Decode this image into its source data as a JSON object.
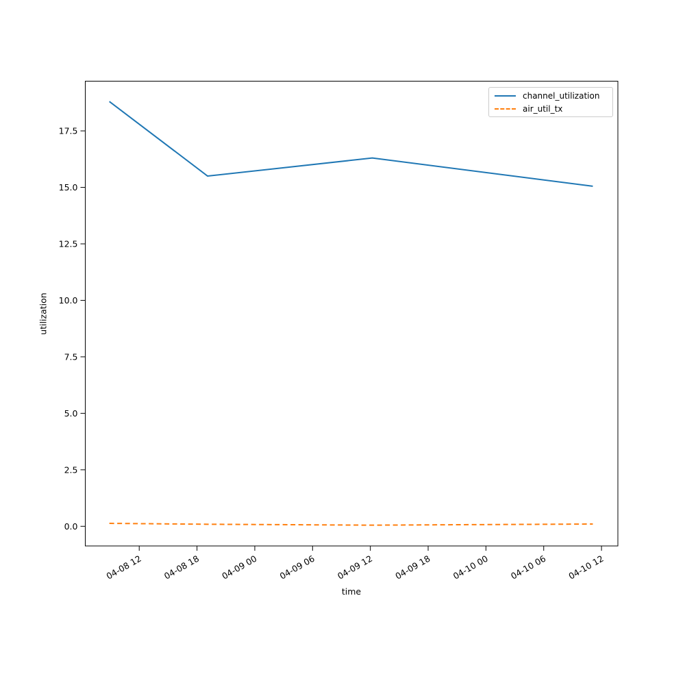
{
  "figure": {
    "background_color": "#ffffff",
    "plot_border_color": "#000000",
    "text_color": "#000000"
  },
  "chart_data": {
    "type": "line",
    "title": "",
    "xlabel": "time",
    "ylabel": "utilization",
    "grid": false,
    "legend_position": "upper right",
    "x_axis_note_hours_offset_from": "04-08 00",
    "xlim": [
      6.4,
      61.7
    ],
    "ylim": [
      -0.87,
      19.7
    ],
    "x_ticks": [
      {
        "hours": 12,
        "label": "04-08 12"
      },
      {
        "hours": 18,
        "label": "04-08 18"
      },
      {
        "hours": 24,
        "label": "04-09 00"
      },
      {
        "hours": 30,
        "label": "04-09 06"
      },
      {
        "hours": 36,
        "label": "04-09 12"
      },
      {
        "hours": 42,
        "label": "04-09 18"
      },
      {
        "hours": 48,
        "label": "04-10 00"
      },
      {
        "hours": 54,
        "label": "04-10 06"
      },
      {
        "hours": 60,
        "label": "04-10 12"
      }
    ],
    "y_ticks": [
      {
        "value": 0.0,
        "label": "0.0"
      },
      {
        "value": 2.5,
        "label": "2.5"
      },
      {
        "value": 5.0,
        "label": "5.0"
      },
      {
        "value": 7.5,
        "label": "7.5"
      },
      {
        "value": 10.0,
        "label": "10.0"
      },
      {
        "value": 12.5,
        "label": "12.5"
      },
      {
        "value": 15.0,
        "label": "15.0"
      },
      {
        "value": 17.5,
        "label": "17.5"
      }
    ],
    "series": [
      {
        "name": "channel_utilization",
        "color": "#1f77b4",
        "style": "solid",
        "x_hours": [
          8.9,
          19.1,
          36.2,
          59.1
        ],
        "values": [
          18.8,
          15.5,
          16.3,
          15.05
        ]
      },
      {
        "name": "air_util_tx",
        "color": "#ff7f0e",
        "style": "dashed",
        "x_hours": [
          8.9,
          19.1,
          36.2,
          59.1
        ],
        "values": [
          0.13,
          0.09,
          0.05,
          0.1
        ]
      }
    ]
  }
}
